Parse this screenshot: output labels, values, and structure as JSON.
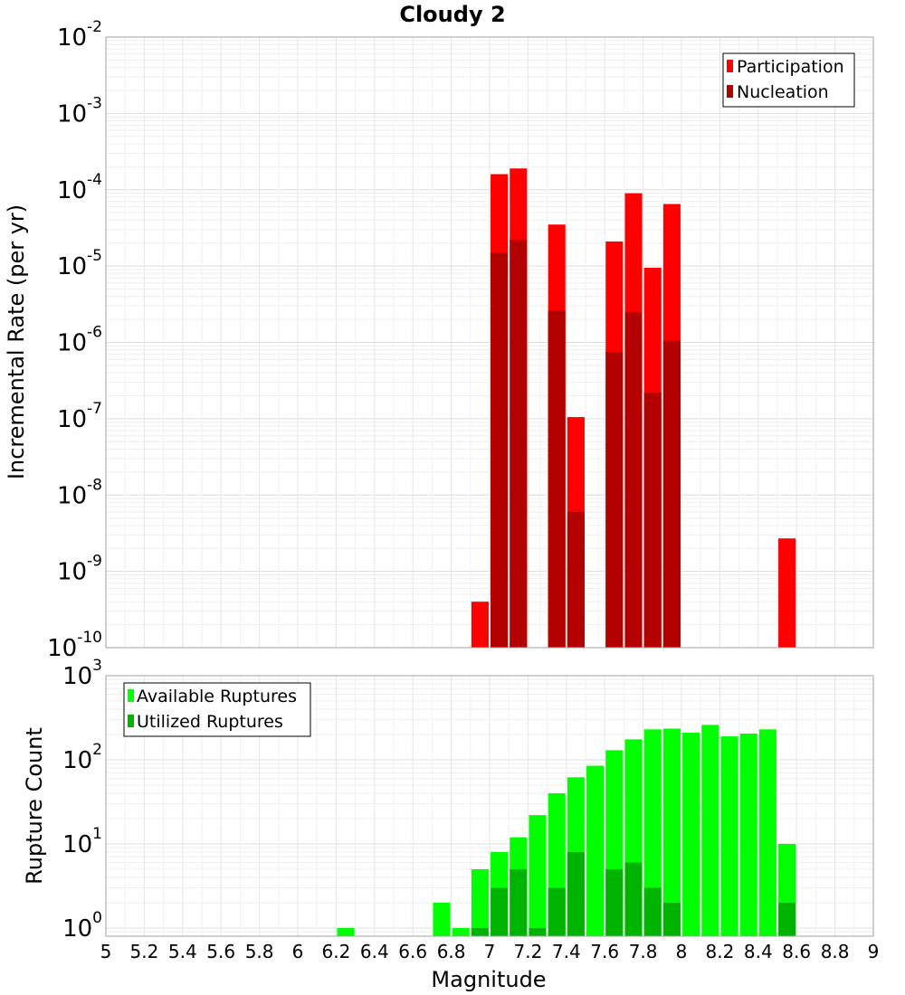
{
  "chart_data": [
    {
      "type": "bar",
      "title": "Cloudy 2",
      "xlabel": "",
      "ylabel": "Incremental Rate (per yr)",
      "y_scale": "log",
      "xlim": [
        5,
        9
      ],
      "ylim": [
        1e-10,
        0.01
      ],
      "grid": true,
      "legend_position": "top-right",
      "x": [
        6.95,
        7.05,
        7.15,
        7.35,
        7.45,
        7.65,
        7.75,
        7.85,
        7.95,
        8.55
      ],
      "series": [
        {
          "name": "Participation",
          "color": "#ff0000",
          "values": [
            4e-10,
            0.00016,
            0.00019,
            3.5e-05,
            1.05e-07,
            2.1e-05,
            9e-05,
            9.5e-06,
            6.5e-05,
            2.7e-09
          ]
        },
        {
          "name": "Nucleation",
          "color": "#b30000",
          "values": [
            null,
            1.5e-05,
            2.2e-05,
            2.6e-06,
            6e-09,
            7.5e-07,
            2.5e-06,
            2.2e-07,
            1.05e-06,
            null
          ]
        }
      ],
      "y_ticks": [
        {
          "base": "10",
          "exp": "-10",
          "v": 1e-10
        },
        {
          "base": "10",
          "exp": "-9",
          "v": 1e-09
        },
        {
          "base": "10",
          "exp": "-8",
          "v": 1e-08
        },
        {
          "base": "10",
          "exp": "-7",
          "v": 1e-07
        },
        {
          "base": "10",
          "exp": "-6",
          "v": 1e-06
        },
        {
          "base": "10",
          "exp": "-5",
          "v": 1e-05
        },
        {
          "base": "10",
          "exp": "-4",
          "v": 0.0001
        },
        {
          "base": "10",
          "exp": "-3",
          "v": 0.001
        },
        {
          "base": "10",
          "exp": "-2",
          "v": 0.01
        }
      ]
    },
    {
      "type": "bar",
      "title": "",
      "xlabel": "Magnitude",
      "ylabel": "Rupture Count",
      "y_scale": "log",
      "xlim": [
        5,
        9
      ],
      "ylim": [
        0.8,
        1000
      ],
      "grid": true,
      "legend_position": "top-left",
      "x": [
        6.25,
        6.75,
        6.85,
        6.95,
        7.05,
        7.15,
        7.25,
        7.35,
        7.45,
        7.55,
        7.65,
        7.75,
        7.85,
        7.95,
        8.05,
        8.15,
        8.25,
        8.35,
        8.45,
        8.55
      ],
      "series": [
        {
          "name": "Available Ruptures",
          "color": "#00ff00",
          "values": [
            1,
            2,
            1,
            5,
            8,
            12,
            22,
            40,
            62,
            85,
            130,
            175,
            230,
            235,
            210,
            260,
            190,
            205,
            230,
            10
          ]
        },
        {
          "name": "Utilized Ruptures",
          "color": "#00b300",
          "values": [
            null,
            null,
            null,
            1,
            3,
            5,
            1,
            3,
            8,
            null,
            5,
            6,
            3,
            2,
            null,
            null,
            null,
            null,
            null,
            2
          ]
        }
      ],
      "y_ticks": [
        {
          "base": "10",
          "exp": "0",
          "v": 1
        },
        {
          "base": "10",
          "exp": "1",
          "v": 10
        },
        {
          "base": "10",
          "exp": "2",
          "v": 100
        },
        {
          "base": "10",
          "exp": "3",
          "v": 1000
        }
      ],
      "x_ticks": [
        "5",
        "5.2",
        "5.4",
        "5.6",
        "5.8",
        "6",
        "6.2",
        "6.4",
        "6.6",
        "6.8",
        "7",
        "7.2",
        "7.4",
        "7.6",
        "7.8",
        "8",
        "8.2",
        "8.4",
        "8.6",
        "8.8",
        "9"
      ]
    }
  ]
}
